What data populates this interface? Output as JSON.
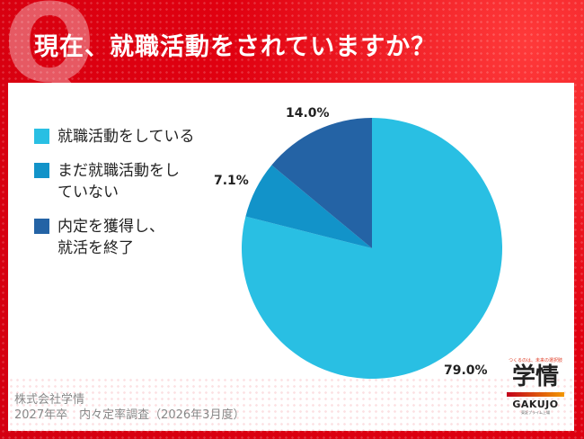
{
  "header": {
    "q_mark": "Q",
    "title": "現在、就職活動をされていますか？"
  },
  "legend": [
    {
      "label": "就職活動をしている",
      "color": "#29bfe3"
    },
    {
      "label": "まだ就職活動をしていない",
      "color": "#1293c9"
    },
    {
      "label": "内定を獲得し、就活を終了",
      "color": "#2463a5"
    }
  ],
  "chart_data": {
    "type": "pie",
    "title": "現在、就職活動をされていますか？",
    "categories": [
      "就職活動をしている",
      "まだ就職活動をしていない",
      "内定を獲得し、就活を終了"
    ],
    "values": [
      79.0,
      7.1,
      14.0
    ],
    "labels": [
      "79.0%",
      "7.1%",
      "14.0%"
    ],
    "colors": [
      "#29bfe3",
      "#1293c9",
      "#2463a5"
    ],
    "start_angle": "12 o'clock, clockwise",
    "legend_position": "left"
  },
  "source": {
    "line1": "株式会社学情",
    "line2": "2027年卒　内々定率調査（2026年3月度）"
  },
  "logo": {
    "tagline": "つくるのは、未来の選択肢",
    "name": "学情",
    "name_en": "GAKUJO",
    "sub": "東証プライム上場"
  }
}
